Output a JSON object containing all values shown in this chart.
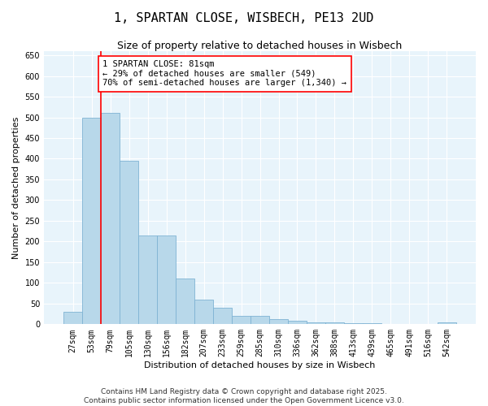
{
  "title": "1, SPARTAN CLOSE, WISBECH, PE13 2UD",
  "subtitle": "Size of property relative to detached houses in Wisbech",
  "xlabel": "Distribution of detached houses by size in Wisbech",
  "ylabel": "Number of detached properties",
  "bin_labels": [
    "27sqm",
    "53sqm",
    "79sqm",
    "105sqm",
    "130sqm",
    "156sqm",
    "182sqm",
    "207sqm",
    "233sqm",
    "259sqm",
    "285sqm",
    "310sqm",
    "336sqm",
    "362sqm",
    "388sqm",
    "413sqm",
    "439sqm",
    "465sqm",
    "491sqm",
    "516sqm",
    "542sqm"
  ],
  "bar_heights": [
    30,
    500,
    510,
    395,
    215,
    215,
    110,
    60,
    40,
    20,
    20,
    12,
    8,
    5,
    5,
    3,
    3,
    0,
    0,
    0,
    5
  ],
  "bar_color": "#b8d8ea",
  "bar_edge_color": "#7fb3d3",
  "vline_color": "red",
  "annotation_text": "1 SPARTAN CLOSE: 81sqm\n← 29% of detached houses are smaller (549)\n70% of semi-detached houses are larger (1,340) →",
  "annotation_box_color": "white",
  "annotation_box_edgecolor": "red",
  "ylim": [
    0,
    660
  ],
  "yticks": [
    0,
    50,
    100,
    150,
    200,
    250,
    300,
    350,
    400,
    450,
    500,
    550,
    600,
    650
  ],
  "background_color": "#e8f4fb",
  "grid_color": "white",
  "footer_line1": "Contains HM Land Registry data © Crown copyright and database right 2025.",
  "footer_line2": "Contains public sector information licensed under the Open Government Licence v3.0.",
  "title_fontsize": 11,
  "subtitle_fontsize": 9,
  "xlabel_fontsize": 8,
  "ylabel_fontsize": 8,
  "tick_fontsize": 7,
  "annotation_fontsize": 7.5,
  "footer_fontsize": 6.5
}
